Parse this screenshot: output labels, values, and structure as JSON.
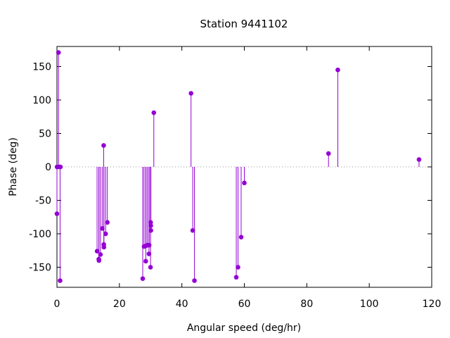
{
  "chart_data": {
    "type": "scatter",
    "style": "impulses-with-points",
    "title": "Station 9441102",
    "xlabel": "Angular speed (deg/hr)",
    "ylabel": "Phase (deg)",
    "xlim": [
      0,
      120
    ],
    "ylim": [
      -180,
      180
    ],
    "xticks": [
      0,
      20,
      40,
      60,
      80,
      100,
      120
    ],
    "yticks": [
      -150,
      -100,
      -50,
      0,
      50,
      100,
      150
    ],
    "zero_line": true,
    "grid": false,
    "color": "#9400d3",
    "points": [
      {
        "x": 0.0,
        "y": -70
      },
      {
        "x": 0.04,
        "y": 0
      },
      {
        "x": 0.08,
        "y": 0
      },
      {
        "x": 0.5,
        "y": 171
      },
      {
        "x": 0.8,
        "y": 0
      },
      {
        "x": 1.0,
        "y": -170
      },
      {
        "x": 1.1,
        "y": 0
      },
      {
        "x": 12.85,
        "y": -126
      },
      {
        "x": 13.4,
        "y": -138
      },
      {
        "x": 13.45,
        "y": -140
      },
      {
        "x": 13.94,
        "y": -131
      },
      {
        "x": 14.5,
        "y": -92
      },
      {
        "x": 14.96,
        "y": 32
      },
      {
        "x": 15.0,
        "y": -116
      },
      {
        "x": 15.04,
        "y": -120
      },
      {
        "x": 15.59,
        "y": -100
      },
      {
        "x": 16.14,
        "y": -83
      },
      {
        "x": 27.47,
        "y": -167
      },
      {
        "x": 27.9,
        "y": -119
      },
      {
        "x": 28.44,
        "y": -141
      },
      {
        "x": 28.51,
        "y": -118
      },
      {
        "x": 28.98,
        "y": -117
      },
      {
        "x": 29.46,
        "y": -130
      },
      {
        "x": 29.53,
        "y": -117
      },
      {
        "x": 29.96,
        "y": -150
      },
      {
        "x": 30.0,
        "y": -83
      },
      {
        "x": 30.04,
        "y": -88
      },
      {
        "x": 30.08,
        "y": -95
      },
      {
        "x": 31.02,
        "y": 81
      },
      {
        "x": 42.93,
        "y": 110
      },
      {
        "x": 43.48,
        "y": -95
      },
      {
        "x": 44.03,
        "y": -170
      },
      {
        "x": 57.42,
        "y": -165
      },
      {
        "x": 57.97,
        "y": -150
      },
      {
        "x": 58.98,
        "y": -105
      },
      {
        "x": 60.0,
        "y": -24
      },
      {
        "x": 86.95,
        "y": 20
      },
      {
        "x": 89.93,
        "y": 145
      },
      {
        "x": 115.94,
        "y": 11
      }
    ]
  }
}
